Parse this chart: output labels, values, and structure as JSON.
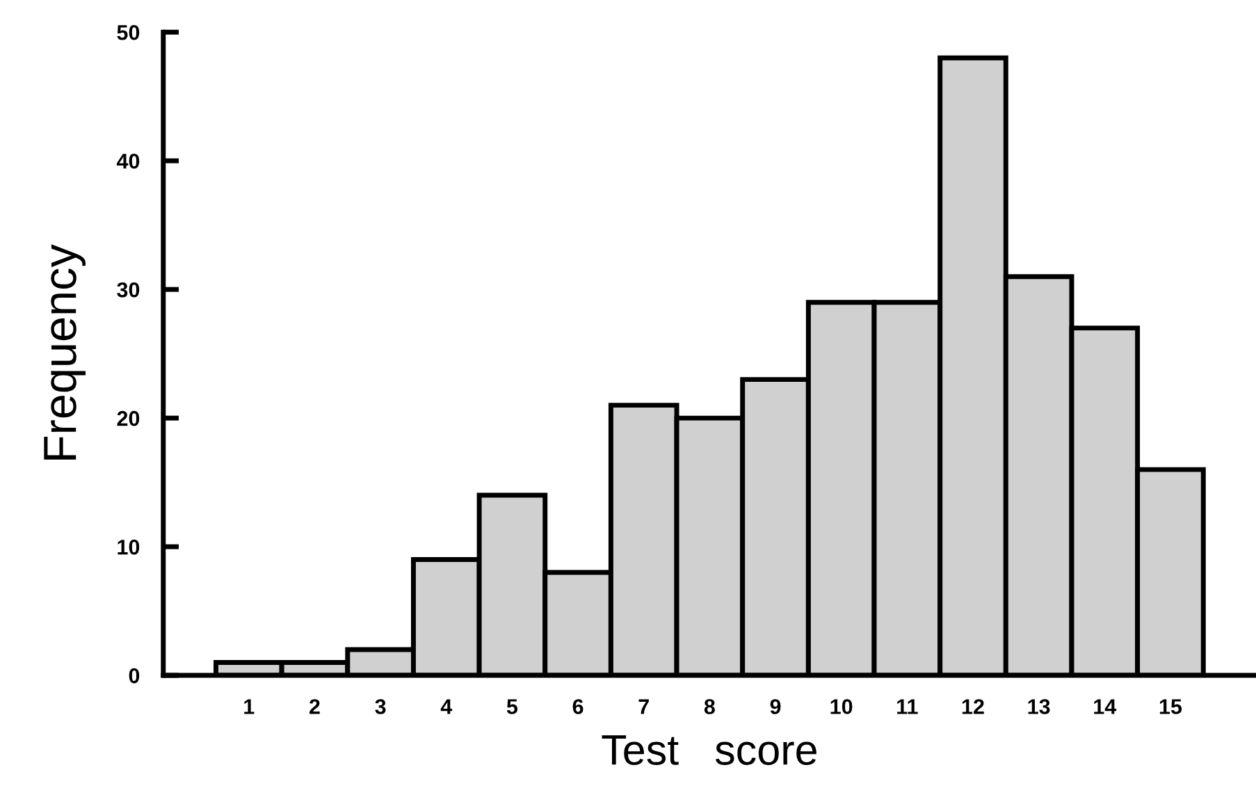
{
  "chart_data": {
    "type": "histogram",
    "xlabel": "Test   score",
    "ylabel": "Frequency",
    "bins": [
      0.5,
      1.5,
      2.5,
      3.5,
      4.5,
      5.5,
      6.5,
      7.5,
      8.5,
      9.5,
      10.5,
      11.5,
      12.5,
      13.5,
      14.5,
      15.5
    ],
    "values": [
      1,
      1,
      2,
      9,
      14,
      8,
      21,
      20,
      23,
      29,
      29,
      48,
      31,
      27,
      16
    ],
    "color": "#d0d0d0",
    "xlim": [
      -0.3,
      16.3
    ],
    "xticks": [
      1,
      2,
      3,
      4,
      5,
      6,
      7,
      8,
      9,
      10,
      11,
      12,
      13,
      14,
      15
    ],
    "ylim": [
      0,
      50
    ],
    "yticks": [
      0,
      10,
      20,
      30,
      40,
      50
    ],
    "grid": false
  }
}
